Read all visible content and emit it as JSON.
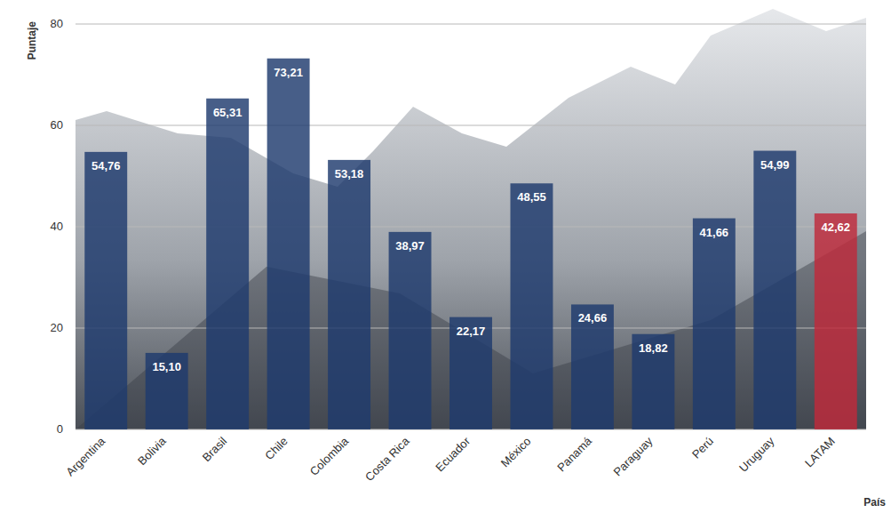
{
  "chart_data": {
    "type": "bar",
    "y_label": "Puntaje",
    "x_label": "País",
    "categories": [
      "Argentina",
      "Bolivia",
      "Brasil",
      "Chile",
      "Colombia",
      "Costa Rica",
      "Ecuador",
      "México",
      "Panamá",
      "Paraguay",
      "Perú",
      "Uruguay",
      "LATAM"
    ],
    "values": [
      54.76,
      15.1,
      65.31,
      73.21,
      53.18,
      38.97,
      22.17,
      48.55,
      24.66,
      18.82,
      41.66,
      54.99,
      42.62
    ],
    "value_labels": [
      "54,76",
      "15,10",
      "65,31",
      "73,21",
      "53,18",
      "38,97",
      "22,17",
      "48,55",
      "24,66",
      "18,82",
      "41,66",
      "54,99",
      "42,62"
    ],
    "colors": [
      "#1f3a6e",
      "#1f3a6e",
      "#1f3a6e",
      "#1f3a6e",
      "#1f3a6e",
      "#1f3a6e",
      "#1f3a6e",
      "#1f3a6e",
      "#1f3a6e",
      "#1f3a6e",
      "#1f3a6e",
      "#1f3a6e",
      "#c0293a"
    ],
    "ylim": [
      0,
      80
    ],
    "yticks": [
      0,
      20,
      40,
      60,
      80
    ],
    "grid": true,
    "data_labels": true
  }
}
